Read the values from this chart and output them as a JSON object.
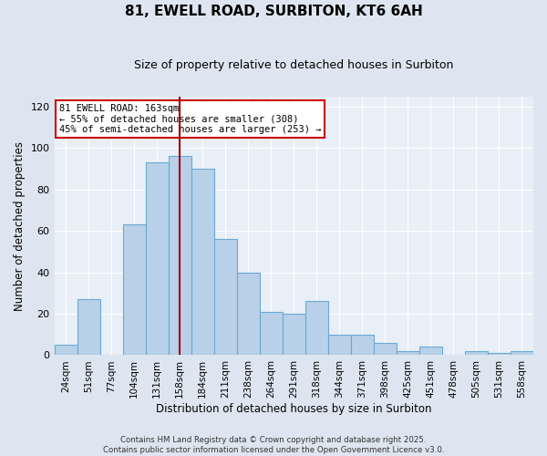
{
  "title": "81, EWELL ROAD, SURBITON, KT6 6AH",
  "subtitle": "Size of property relative to detached houses in Surbiton",
  "xlabel": "Distribution of detached houses by size in Surbiton",
  "ylabel": "Number of detached properties",
  "bins": [
    "24sqm",
    "51sqm",
    "77sqm",
    "104sqm",
    "131sqm",
    "158sqm",
    "184sqm",
    "211sqm",
    "238sqm",
    "264sqm",
    "291sqm",
    "318sqm",
    "344sqm",
    "371sqm",
    "398sqm",
    "425sqm",
    "451sqm",
    "478sqm",
    "505sqm",
    "531sqm",
    "558sqm"
  ],
  "values": [
    5,
    27,
    0,
    63,
    93,
    96,
    90,
    56,
    40,
    21,
    20,
    26,
    10,
    10,
    6,
    2,
    4,
    0,
    2,
    1,
    2
  ],
  "bar_color": "#b8d0e8",
  "bar_edgecolor": "#6aaad4",
  "vline_x_index": 5,
  "vline_color": "#9b0000",
  "annotation_title": "81 EWELL ROAD: 163sqm",
  "annotation_line1": "← 55% of detached houses are smaller (308)",
  "annotation_line2": "45% of semi-detached houses are larger (253) →",
  "annotation_box_edgecolor": "#cc0000",
  "annotation_box_facecolor": "#ffffff",
  "ylim": [
    0,
    125
  ],
  "yticks": [
    0,
    20,
    40,
    60,
    80,
    100,
    120
  ],
  "footer1": "Contains HM Land Registry data © Crown copyright and database right 2025.",
  "footer2": "Contains public sector information licensed under the Open Government Licence v3.0.",
  "bg_color": "#dde6f0",
  "plot_bg_color": "#e8eff7"
}
